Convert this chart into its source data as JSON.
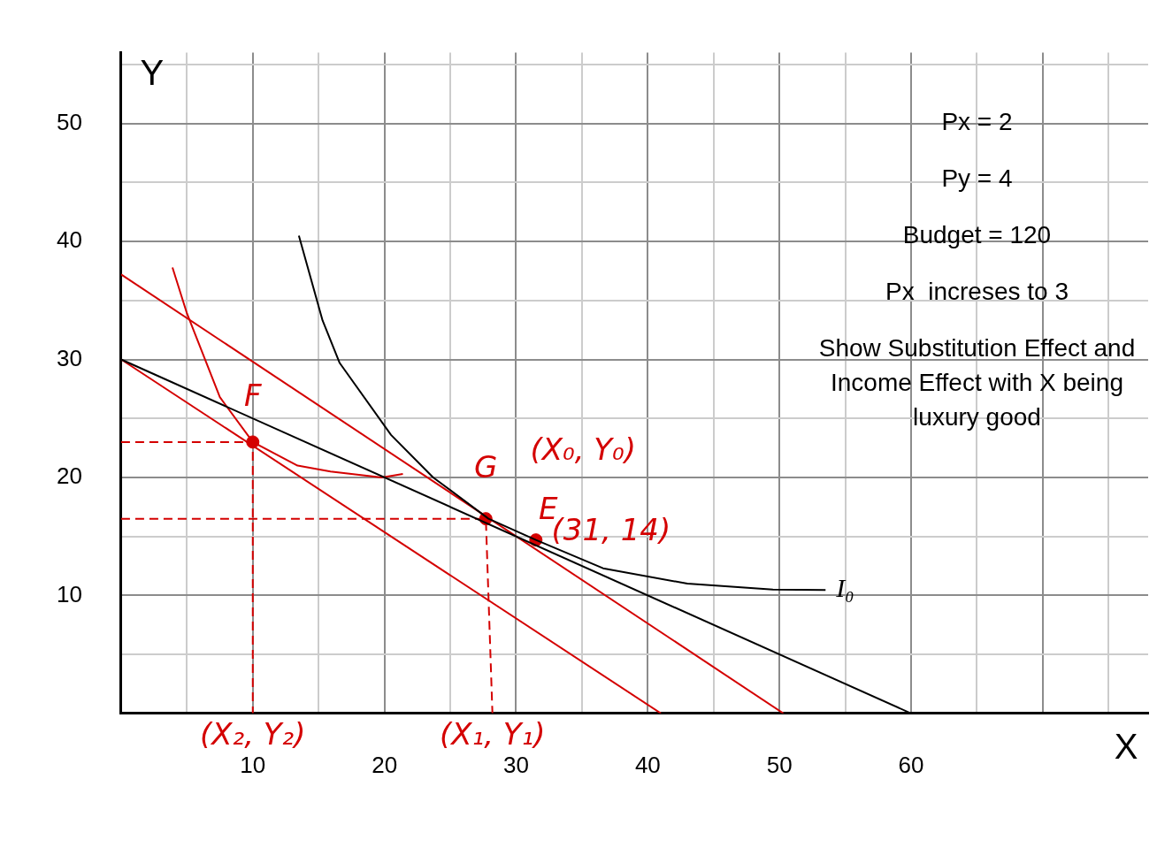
{
  "chart_data": {
    "type": "line",
    "xlabel": "X",
    "ylabel": "Y",
    "series": [
      {
        "color": "#000000",
        "x": [
          0,
          60
        ],
        "values": [
          30,
          0
        ]
      },
      {
        "name": "I₀",
        "color": "#000000",
        "x": [
          13.5,
          15.3,
          16.6,
          20.5,
          23.7,
          27.9,
          31.5,
          36.6,
          43,
          49.5,
          53.5
        ],
        "values": [
          40.5,
          33.3,
          29.7,
          23.6,
          20,
          16.5,
          14.7,
          12.3,
          11,
          10.5,
          10.45
        ]
      },
      {
        "color": "#d40000",
        "x": [
          0,
          41
        ],
        "values": [
          30,
          0
        ]
      },
      {
        "color": "#d40000",
        "x": [
          0,
          50.3
        ],
        "values": [
          37.2,
          0
        ]
      },
      {
        "color": "#d40000",
        "x": [
          3.9,
          5,
          7.5,
          10,
          13.4,
          15.9,
          19.8,
          21.4
        ],
        "values": [
          37.8,
          33.9,
          26.8,
          23,
          21,
          20.5,
          20,
          20.3
        ]
      },
      {
        "color": "#d40000",
        "line_style": "dashed",
        "x": [
          0,
          10,
          10
        ],
        "values": [
          23,
          23,
          0
        ]
      },
      {
        "color": "#d40000",
        "line_style": "dashed",
        "x": [
          0,
          27.7,
          28.2
        ],
        "values": [
          16.5,
          16.5,
          0
        ]
      },
      {
        "type": "scatter",
        "marker": "circle",
        "color": "#d40000",
        "x": [
          10,
          27.7,
          31.5
        ],
        "values": [
          23,
          16.5,
          14.7
        ]
      }
    ],
    "xlim": [
      0,
      78
    ],
    "ylim": [
      0,
      56
    ],
    "xticks": [
      {
        "value": 0,
        "label": null
      },
      {
        "value": 5,
        "label": null
      },
      10,
      {
        "value": 15,
        "label": null
      },
      20,
      {
        "value": 25,
        "label": null
      },
      30,
      {
        "value": 35,
        "label": null
      },
      40,
      {
        "value": 45,
        "label": null
      },
      50,
      {
        "value": 55,
        "label": null
      },
      60,
      {
        "value": 65,
        "label": null
      },
      {
        "value": 70,
        "label": null
      },
      {
        "value": 75,
        "label": null
      }
    ],
    "yticks": [
      {
        "value": 0,
        "label": null
      },
      {
        "value": 5,
        "label": null
      },
      10,
      {
        "value": 15,
        "label": null
      },
      20,
      {
        "value": 25,
        "label": null
      },
      30,
      {
        "value": 35,
        "label": null
      },
      40,
      {
        "value": 45,
        "label": null
      },
      50,
      {
        "value": 55,
        "label": null
      }
    ],
    "grid": true,
    "marker": "none",
    "line_style": "solid",
    "annotations": [
      "Px = 2",
      "Py = 4",
      "Budget = 120",
      "Px  increses to 3",
      "Show Substitution Effect and Income Effect with X being luxury good",
      {
        "text": "F",
        "x": 10,
        "y": 23
      },
      {
        "text": "G",
        "x": 27.7,
        "y": 16.5
      },
      {
        "text": "E",
        "x": 31.5,
        "y": 14.7
      },
      {
        "text": "(X₀, Y₀)",
        "x": 27.7,
        "y": 16.5
      },
      {
        "text": "(31, 14)",
        "x": 31.5,
        "y": 14.7
      },
      {
        "text": "(X₂, Y₂)",
        "x": 10,
        "y": 0
      },
      {
        "text": "(X₁, Y₁)",
        "x": 28.2,
        "y": 0
      }
    ]
  }
}
